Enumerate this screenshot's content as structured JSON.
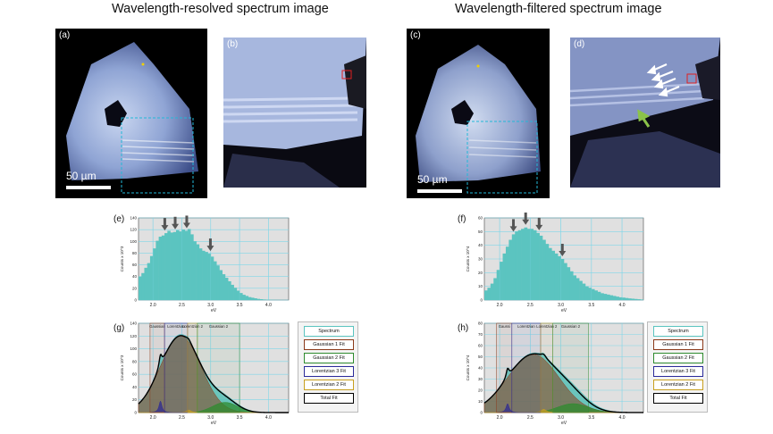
{
  "headings": {
    "left": "Wavelength-resolved spectrum image",
    "right": "Wavelength-filtered spectrum image"
  },
  "panels": {
    "a": "(a)",
    "b": "(b)",
    "c": "(c)",
    "d": "(d)",
    "e": "(e)",
    "f": "(f)",
    "g": "(g)",
    "h": "(h)"
  },
  "scale_bar_text": "50 µm",
  "legend_items": [
    "Spectrum",
    "Gaussian 1 Fit",
    "Gaussian 2 Fit",
    "Lorentzian 3 Fit",
    "Lorentzian 2 Fit",
    "Total Fit"
  ],
  "colors": {
    "bars": "#5bc4c0",
    "plot_bg": "#e0e0e0",
    "grid": "#7fd6e8",
    "arrow_dark": "#555555",
    "arrow_green": "#8bc34a",
    "fit_gaussian1": "#8b3a1a",
    "fit_gaussian2": "#2e8b2e",
    "fit_lorentzian3": "#2a2a9a",
    "fit_lorentzian2": "#c8a020",
    "total_fit": "#000000",
    "box_cyan": "#22b8d8",
    "box_red": "#e02020"
  },
  "chart_data": [
    {
      "id": "e",
      "type": "bar",
      "ylabel": "Counts x 10^3",
      "xlabel": "eV",
      "xlim": [
        1.75,
        4.35
      ],
      "ylim": [
        0,
        140
      ],
      "xticks": [
        "2.0",
        "2.5",
        "3.0",
        "3.5",
        "4.0"
      ],
      "xtick_values": [
        2.0,
        2.5,
        3.0,
        3.5,
        4.0
      ],
      "yticks": [
        "0",
        "20",
        "40",
        "60",
        "80",
        "100",
        "120",
        "140"
      ],
      "ytick_values": [
        0,
        20,
        40,
        60,
        80,
        100,
        120,
        140
      ],
      "x": [
        1.75,
        1.8,
        1.85,
        1.9,
        1.95,
        2.0,
        2.05,
        2.1,
        2.15,
        2.2,
        2.25,
        2.3,
        2.35,
        2.4,
        2.45,
        2.5,
        2.55,
        2.6,
        2.65,
        2.7,
        2.75,
        2.8,
        2.85,
        2.9,
        2.95,
        3.0,
        3.05,
        3.1,
        3.15,
        3.2,
        3.25,
        3.3,
        3.35,
        3.4,
        3.45,
        3.5,
        3.55,
        3.6,
        3.65,
        3.7,
        3.75,
        3.8,
        3.85,
        3.9,
        3.95,
        4.0,
        4.05,
        4.1,
        4.15,
        4.2,
        4.25,
        4.3
      ],
      "values": [
        40,
        46,
        55,
        63,
        75,
        88,
        101,
        108,
        110,
        114,
        118,
        115,
        116,
        119,
        117,
        120,
        118,
        121,
        112,
        100,
        95,
        88,
        84,
        82,
        79,
        74,
        66,
        59,
        51,
        44,
        38,
        32,
        26,
        21,
        16,
        12,
        9,
        7,
        5,
        4,
        3,
        2,
        1.5,
        1,
        0.7,
        0.5,
        0.4,
        0.3,
        0.2,
        0.1,
        0.1,
        0.05
      ],
      "arrows_at_x": [
        2.18,
        2.36,
        2.56,
        2.97
      ]
    },
    {
      "id": "f",
      "type": "bar",
      "ylabel": "Counts x 10^4",
      "xlabel": "eV",
      "xlim": [
        1.75,
        4.35
      ],
      "ylim": [
        0,
        60
      ],
      "xticks": [
        "2.0",
        "2.5",
        "3.0",
        "3.5",
        "4.0"
      ],
      "xtick_values": [
        2.0,
        2.5,
        3.0,
        3.5,
        4.0
      ],
      "yticks": [
        "0",
        "10",
        "20",
        "30",
        "40",
        "50",
        "60"
      ],
      "ytick_values": [
        0,
        10,
        20,
        30,
        40,
        50,
        60
      ],
      "x": [
        1.75,
        1.8,
        1.85,
        1.9,
        1.95,
        2.0,
        2.05,
        2.1,
        2.15,
        2.2,
        2.25,
        2.3,
        2.35,
        2.4,
        2.45,
        2.5,
        2.55,
        2.6,
        2.65,
        2.7,
        2.75,
        2.8,
        2.85,
        2.9,
        2.95,
        3.0,
        3.05,
        3.1,
        3.15,
        3.2,
        3.25,
        3.3,
        3.35,
        3.4,
        3.45,
        3.5,
        3.55,
        3.6,
        3.65,
        3.7,
        3.75,
        3.8,
        3.85,
        3.9,
        3.95,
        4.0,
        4.05,
        4.1,
        4.15,
        4.2,
        4.25,
        4.3
      ],
      "values": [
        7,
        9,
        12,
        16,
        22,
        28,
        34,
        39,
        44,
        48,
        50,
        51,
        52,
        53,
        52,
        52,
        51,
        49,
        47,
        44,
        41,
        38,
        36,
        34,
        32,
        30,
        27,
        24,
        21,
        18,
        16,
        14,
        12,
        10,
        9,
        8,
        7,
        6,
        5,
        4.5,
        4,
        3.5,
        3,
        2.5,
        2,
        1.8,
        1.5,
        1.2,
        1,
        0.8,
        0.6,
        0.4
      ],
      "arrows_at_x": [
        2.2,
        2.4,
        2.62,
        3.0
      ]
    },
    {
      "id": "g",
      "type": "area",
      "ylabel": "Counts x 10^3",
      "xlabel": "eV",
      "xlim": [
        1.75,
        4.35
      ],
      "ylim": [
        0,
        140
      ],
      "xticks": [
        "2.0",
        "2.5",
        "3.0",
        "3.5",
        "4.0"
      ],
      "xtick_values": [
        2.0,
        2.5,
        3.0,
        3.5,
        4.0
      ],
      "yticks": [
        "0",
        "20",
        "40",
        "60",
        "80",
        "100",
        "120",
        "140"
      ],
      "ytick_values": [
        0,
        20,
        40,
        60,
        80,
        100,
        120,
        140
      ],
      "header_labels": [
        "Gaussian",
        "Lorentzian",
        "Lorentzian 2",
        "Gaussian 2"
      ],
      "components": [
        {
          "name": "Gaussian 1 Fit",
          "kind": "gaussian",
          "center": 2.48,
          "amp": 120,
          "sigma": 0.35
        },
        {
          "name": "Gaussian 2 Fit",
          "kind": "gaussian",
          "center": 3.25,
          "amp": 16,
          "sigma": 0.22
        },
        {
          "name": "Lorentzian 3 Fit",
          "kind": "lorentzian",
          "center": 2.13,
          "amp": 18,
          "gamma": 0.03
        },
        {
          "name": "Lorentzian 2 Fit",
          "kind": "lorentzian",
          "center": 2.62,
          "amp": 4,
          "gamma": 0.05
        }
      ]
    },
    {
      "id": "h",
      "type": "area",
      "ylabel": "Counts x 10^4",
      "xlabel": "eV",
      "xlim": [
        1.75,
        4.35
      ],
      "ylim": [
        0,
        80
      ],
      "xticks": [
        "2.0",
        "2.5",
        "3.0",
        "3.5",
        "4.0"
      ],
      "xtick_values": [
        2.0,
        2.5,
        3.0,
        3.5,
        4.0
      ],
      "yticks": [
        "0",
        "10",
        "20",
        "30",
        "40",
        "50",
        "60",
        "70",
        "80"
      ],
      "ytick_values": [
        0,
        10,
        20,
        30,
        40,
        50,
        60,
        70,
        80
      ],
      "header_labels": [
        "Gaussi",
        "Lorentzian",
        "Lorentzian 2",
        "Gaussian 2"
      ],
      "components": [
        {
          "name": "Gaussian 1 Fit",
          "kind": "gaussian",
          "center": 2.55,
          "amp": 52,
          "sigma": 0.42
        },
        {
          "name": "Gaussian 2 Fit",
          "kind": "gaussian",
          "center": 3.2,
          "amp": 8,
          "sigma": 0.25
        },
        {
          "name": "Lorentzian 3 Fit",
          "kind": "lorentzian",
          "center": 2.13,
          "amp": 8,
          "gamma": 0.03
        },
        {
          "name": "Lorentzian 2 Fit",
          "kind": "lorentzian",
          "center": 2.72,
          "amp": 3,
          "gamma": 0.05
        }
      ]
    }
  ]
}
